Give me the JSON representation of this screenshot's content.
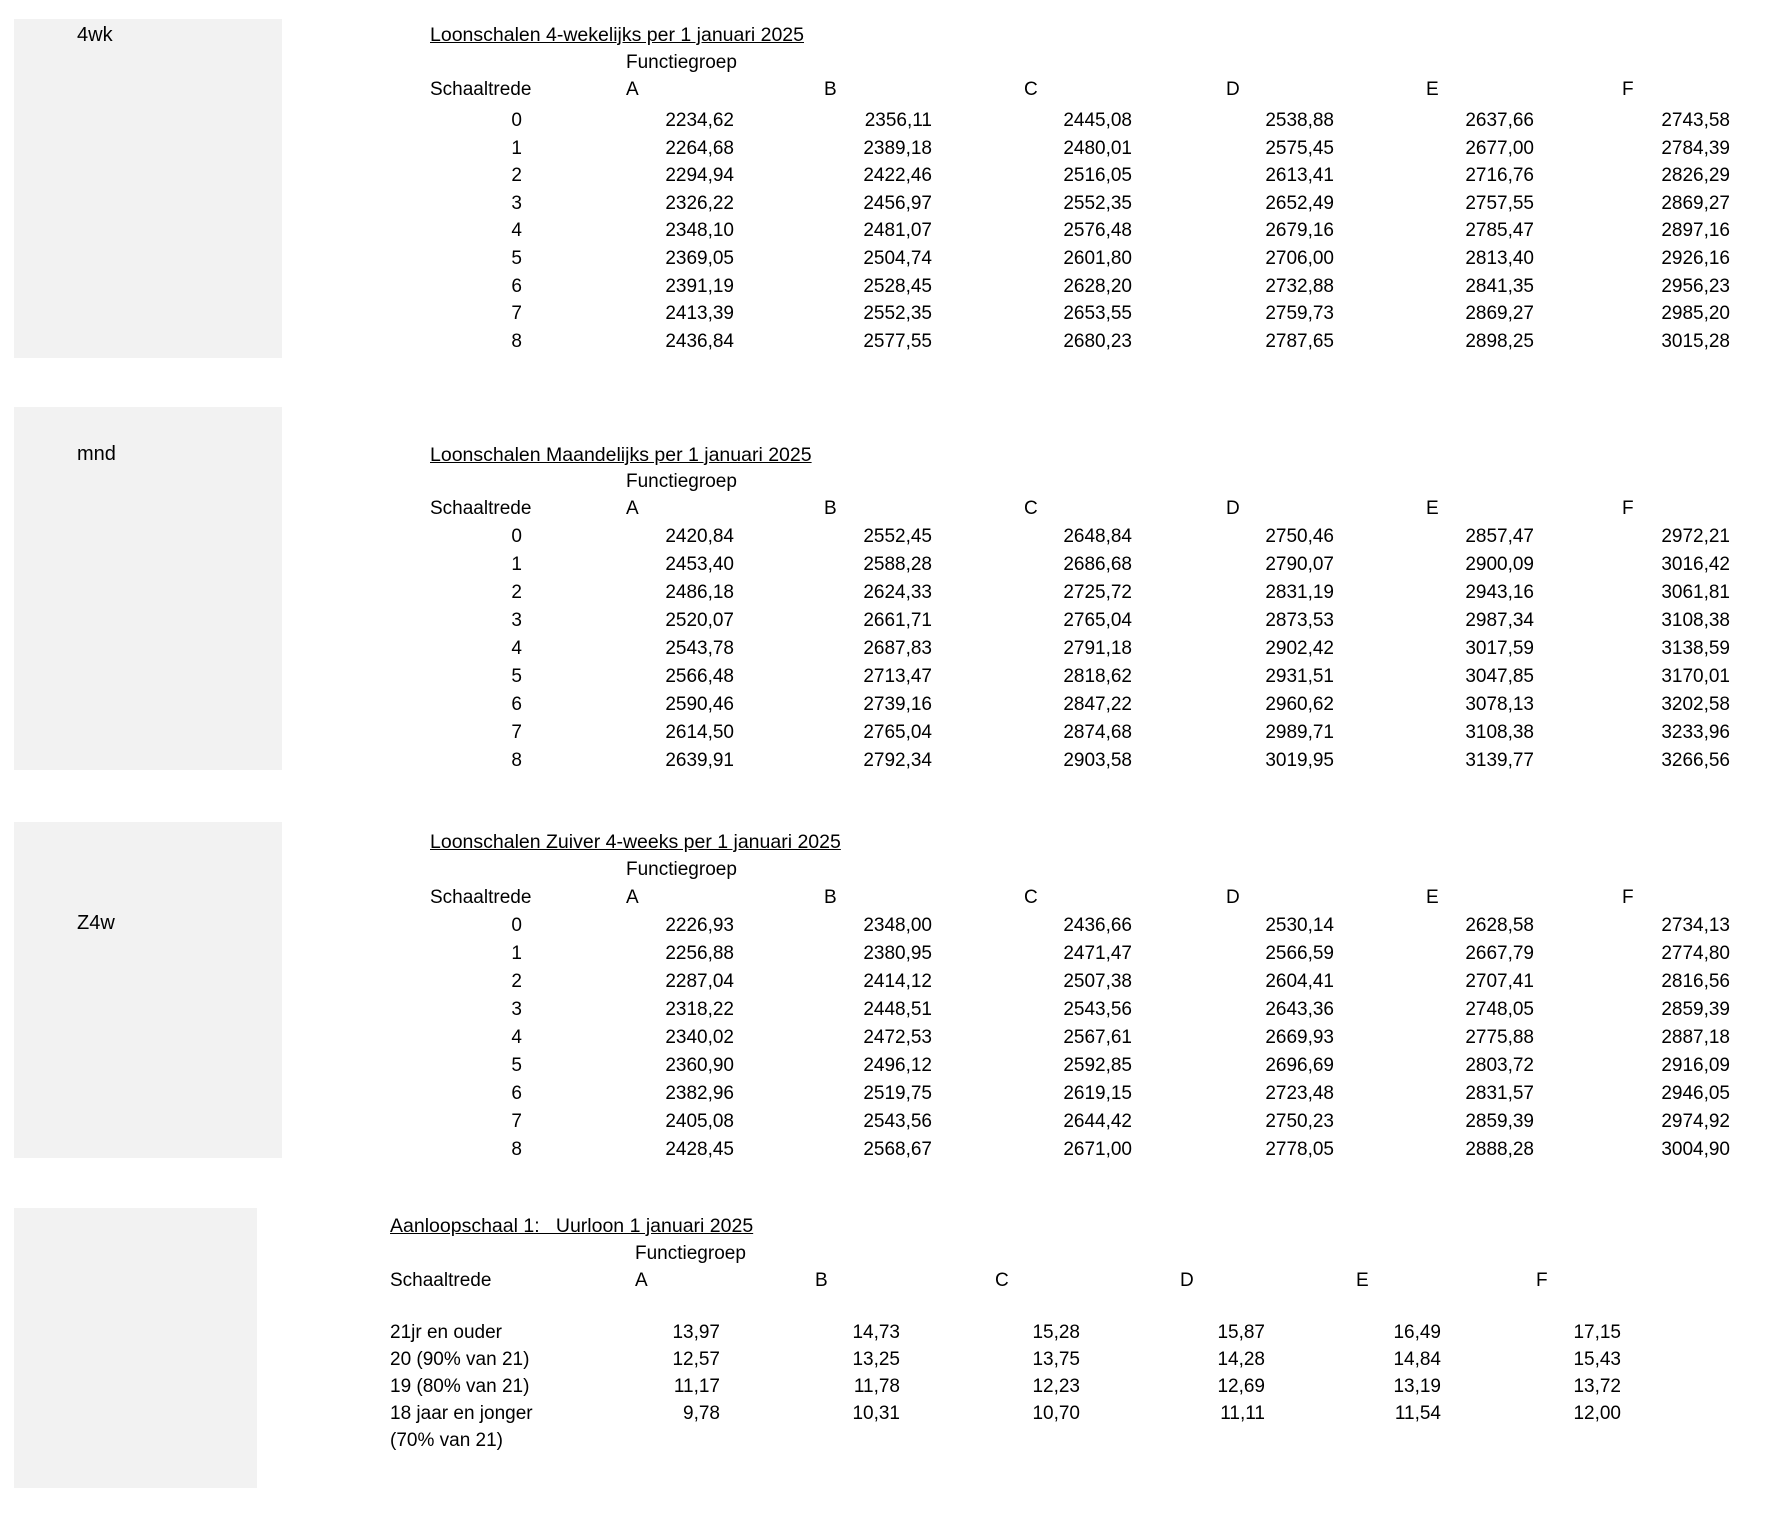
{
  "page": {
    "background": "#ffffff",
    "panel_color": "#f2f2f2",
    "text_color": "#000000"
  },
  "tables": [
    {
      "id": "4wk",
      "side_label": "4wk",
      "title": "Loonschalen 4-wekelijks per 1 januari 2025",
      "group_header": "Functiegroep",
      "row_header": "Schaaltrede",
      "columns": [
        "A",
        "B",
        "C",
        "D",
        "E",
        "F"
      ],
      "rows": [
        {
          "label": "0",
          "values": [
            "2234,62",
            "2356,11",
            "2445,08",
            "2538,88",
            "2637,66",
            "2743,58"
          ]
        },
        {
          "label": "1",
          "values": [
            "2264,68",
            "2389,18",
            "2480,01",
            "2575,45",
            "2677,00",
            "2784,39"
          ]
        },
        {
          "label": "2",
          "values": [
            "2294,94",
            "2422,46",
            "2516,05",
            "2613,41",
            "2716,76",
            "2826,29"
          ]
        },
        {
          "label": "3",
          "values": [
            "2326,22",
            "2456,97",
            "2552,35",
            "2652,49",
            "2757,55",
            "2869,27"
          ]
        },
        {
          "label": "4",
          "values": [
            "2348,10",
            "2481,07",
            "2576,48",
            "2679,16",
            "2785,47",
            "2897,16"
          ]
        },
        {
          "label": "5",
          "values": [
            "2369,05",
            "2504,74",
            "2601,80",
            "2706,00",
            "2813,40",
            "2926,16"
          ]
        },
        {
          "label": "6",
          "values": [
            "2391,19",
            "2528,45",
            "2628,20",
            "2732,88",
            "2841,35",
            "2956,23"
          ]
        },
        {
          "label": "7",
          "values": [
            "2413,39",
            "2552,35",
            "2653,55",
            "2759,73",
            "2869,27",
            "2985,20"
          ]
        },
        {
          "label": "8",
          "values": [
            "2436,84",
            "2577,55",
            "2680,23",
            "2787,65",
            "2898,25",
            "3015,28"
          ]
        }
      ]
    },
    {
      "id": "mnd",
      "side_label": "mnd",
      "title": "Loonschalen Maandelijks per 1 januari 2025",
      "group_header": "Functiegroep",
      "row_header": "Schaaltrede",
      "columns": [
        "A",
        "B",
        "C",
        "D",
        "E",
        "F"
      ],
      "rows": [
        {
          "label": "0",
          "values": [
            "2420,84",
            "2552,45",
            "2648,84",
            "2750,46",
            "2857,47",
            "2972,21"
          ]
        },
        {
          "label": "1",
          "values": [
            "2453,40",
            "2588,28",
            "2686,68",
            "2790,07",
            "2900,09",
            "3016,42"
          ]
        },
        {
          "label": "2",
          "values": [
            "2486,18",
            "2624,33",
            "2725,72",
            "2831,19",
            "2943,16",
            "3061,81"
          ]
        },
        {
          "label": "3",
          "values": [
            "2520,07",
            "2661,71",
            "2765,04",
            "2873,53",
            "2987,34",
            "3108,38"
          ]
        },
        {
          "label": "4",
          "values": [
            "2543,78",
            "2687,83",
            "2791,18",
            "2902,42",
            "3017,59",
            "3138,59"
          ]
        },
        {
          "label": "5",
          "values": [
            "2566,48",
            "2713,47",
            "2818,62",
            "2931,51",
            "3047,85",
            "3170,01"
          ]
        },
        {
          "label": "6",
          "values": [
            "2590,46",
            "2739,16",
            "2847,22",
            "2960,62",
            "3078,13",
            "3202,58"
          ]
        },
        {
          "label": "7",
          "values": [
            "2614,50",
            "2765,04",
            "2874,68",
            "2989,71",
            "3108,38",
            "3233,96"
          ]
        },
        {
          "label": "8",
          "values": [
            "2639,91",
            "2792,34",
            "2903,58",
            "3019,95",
            "3139,77",
            "3266,56"
          ]
        }
      ]
    },
    {
      "id": "z4w",
      "side_label": "Z4w",
      "title": "Loonschalen Zuiver 4-weeks per 1 januari 2025",
      "group_header": "Functiegroep",
      "row_header": "Schaaltrede",
      "columns": [
        "A",
        "B",
        "C",
        "D",
        "E",
        "F"
      ],
      "rows": [
        {
          "label": "0",
          "values": [
            "2226,93",
            "2348,00",
            "2436,66",
            "2530,14",
            "2628,58",
            "2734,13"
          ]
        },
        {
          "label": "1",
          "values": [
            "2256,88",
            "2380,95",
            "2471,47",
            "2566,59",
            "2667,79",
            "2774,80"
          ]
        },
        {
          "label": "2",
          "values": [
            "2287,04",
            "2414,12",
            "2507,38",
            "2604,41",
            "2707,41",
            "2816,56"
          ]
        },
        {
          "label": "3",
          "values": [
            "2318,22",
            "2448,51",
            "2543,56",
            "2643,36",
            "2748,05",
            "2859,39"
          ]
        },
        {
          "label": "4",
          "values": [
            "2340,02",
            "2472,53",
            "2567,61",
            "2669,93",
            "2775,88",
            "2887,18"
          ]
        },
        {
          "label": "5",
          "values": [
            "2360,90",
            "2496,12",
            "2592,85",
            "2696,69",
            "2803,72",
            "2916,09"
          ]
        },
        {
          "label": "6",
          "values": [
            "2382,96",
            "2519,75",
            "2619,15",
            "2723,48",
            "2831,57",
            "2946,05"
          ]
        },
        {
          "label": "7",
          "values": [
            "2405,08",
            "2543,56",
            "2644,42",
            "2750,23",
            "2859,39",
            "2974,92"
          ]
        },
        {
          "label": "8",
          "values": [
            "2428,45",
            "2568,67",
            "2671,00",
            "2778,05",
            "2888,28",
            "3004,90"
          ]
        }
      ]
    },
    {
      "id": "aanloop",
      "side_label": "",
      "title": "Aanloopschaal 1:   Uurloon 1 januari 2025",
      "group_header": "Functiegroep",
      "row_header": "Schaaltrede",
      "columns": [
        "A",
        "B",
        "C",
        "D",
        "E",
        "F"
      ],
      "rows": [
        {
          "label": "21jr en ouder",
          "values": [
            "13,97",
            "14,73",
            "15,28",
            "15,87",
            "16,49",
            "17,15"
          ]
        },
        {
          "label": "20 (90% van 21)",
          "values": [
            "12,57",
            "13,25",
            "13,75",
            "14,28",
            "14,84",
            "15,43"
          ]
        },
        {
          "label": "19 (80% van 21)",
          "values": [
            "11,17",
            "11,78",
            "12,23",
            "12,69",
            "13,19",
            "13,72"
          ]
        },
        {
          "label": "18 jaar en jonger",
          "label_note": "(70% van 21)",
          "values": [
            "9,78",
            "10,31",
            "10,70",
            "11,11",
            "11,54",
            "12,00"
          ]
        }
      ]
    }
  ]
}
